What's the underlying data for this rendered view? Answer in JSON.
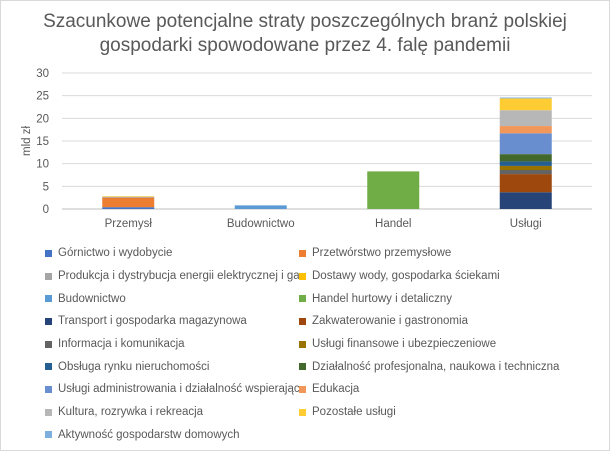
{
  "chart_data": {
    "type": "stacked-bar",
    "title": [
      "Szacunkowe potencjalne straty poszczególnych branż polskiej",
      "gospodarki spowodowane przez 4. falę pandemii"
    ],
    "ylabel": "mld zł",
    "xlabel": "",
    "ylim": [
      0,
      30
    ],
    "yticks": [
      0,
      5,
      10,
      15,
      20,
      25,
      30
    ],
    "grid": true,
    "legend_position": "bottom",
    "categories": [
      "Przemysł",
      "Budownictwo",
      "Handel",
      "Usługi"
    ],
    "series": [
      {
        "name": "Górnictwo i wydobycie",
        "color": "#4472c4",
        "values": [
          0.4,
          0,
          0,
          0
        ]
      },
      {
        "name": "Przetwórstwo przemysłowe",
        "color": "#ed7d31",
        "values": [
          2.1,
          0,
          0,
          0
        ]
      },
      {
        "name": "Produkcja i dystrybucja energii elektrycznej i gazu",
        "color": "#a5a5a5",
        "values": [
          0.2,
          0,
          0,
          0
        ]
      },
      {
        "name": "Dostawy wody, gospodarka ściekami",
        "color": "#ffc000",
        "values": [
          0.1,
          0,
          0,
          0
        ]
      },
      {
        "name": "Budownictwo",
        "color": "#5b9bd5",
        "values": [
          0,
          0.8,
          0,
          0
        ]
      },
      {
        "name": "Handel hurtowy i detaliczny",
        "color": "#70ad47",
        "values": [
          0,
          0,
          8.3,
          0
        ]
      },
      {
        "name": "Transport i gospodarka magazynowa",
        "color": "#264478",
        "values": [
          0,
          0,
          0,
          3.7
        ]
      },
      {
        "name": "Zakwaterowanie i gastronomia",
        "color": "#9e480e",
        "values": [
          0,
          0,
          0,
          4.0
        ]
      },
      {
        "name": "Informacja i komunikacja",
        "color": "#636363",
        "values": [
          0,
          0,
          0,
          0.9
        ]
      },
      {
        "name": "Usługi finansowe i ubezpieczeniowe",
        "color": "#997300",
        "values": [
          0,
          0,
          0,
          0.9
        ]
      },
      {
        "name": "Obsługa rynku nieruchomości",
        "color": "#255e91",
        "values": [
          0,
          0,
          0,
          1.0
        ]
      },
      {
        "name": "Działalność profesjonalna, naukowa i techniczna",
        "color": "#43682b",
        "values": [
          0,
          0,
          0,
          1.6
        ]
      },
      {
        "name": "Usługi administrowania i działalność wspierająca",
        "color": "#698ed0",
        "values": [
          0,
          0,
          0,
          4.6
        ]
      },
      {
        "name": "Edukacja",
        "color": "#f1975a",
        "values": [
          0,
          0,
          0,
          1.6
        ]
      },
      {
        "name": "Kultura, rozrywka i rekreacja",
        "color": "#b7b7b7",
        "values": [
          0,
          0,
          0,
          3.5
        ]
      },
      {
        "name": "Pozostałe usługi",
        "color": "#ffcd33",
        "values": [
          0,
          0,
          0,
          2.6
        ]
      },
      {
        "name": "Aktywność gospodarstw domowych",
        "color": "#7cafdd",
        "values": [
          0,
          0,
          0,
          0.2
        ]
      }
    ]
  }
}
